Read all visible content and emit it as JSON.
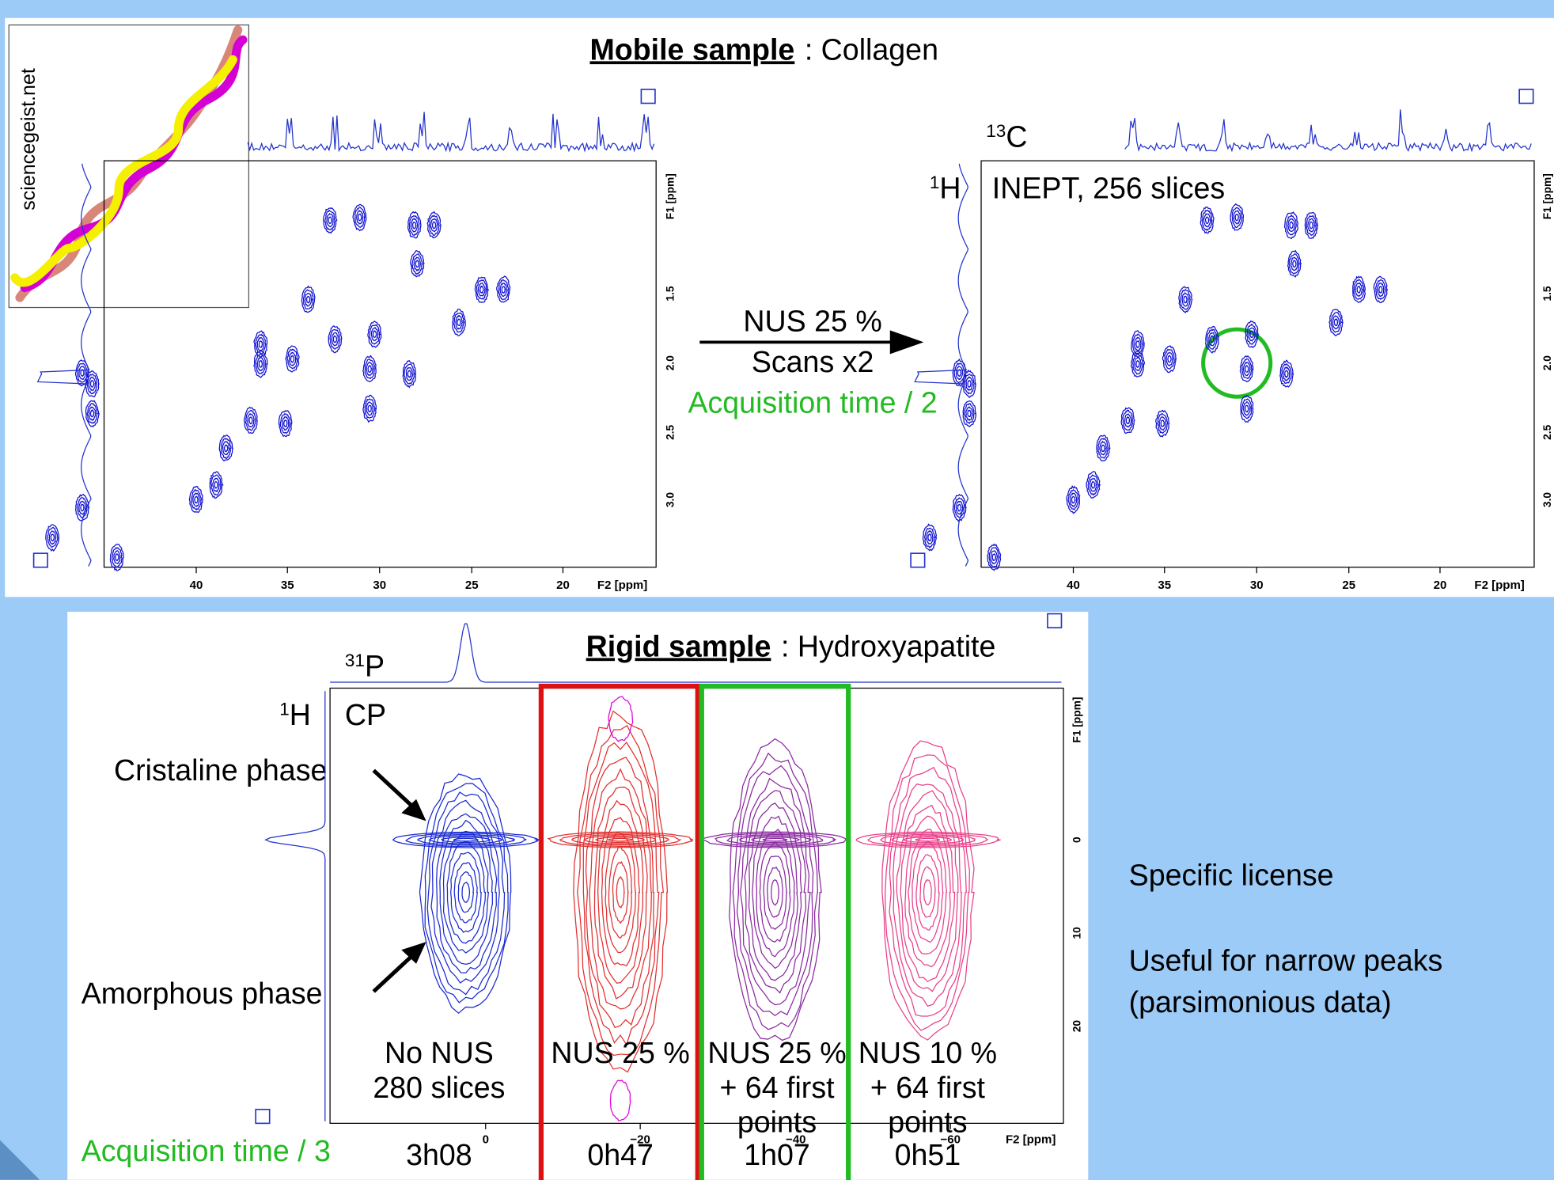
{
  "top": {
    "title_bold": "Mobile sample",
    "title_rest": ": Collagen",
    "inset_credit": "sciencegeist.net",
    "left_spectrum": {
      "x_ticks": [
        "40",
        "35",
        "30",
        "25",
        "20"
      ],
      "x_label": "F2 [ppm]",
      "y_ticks": [
        "1.5",
        "2.0",
        "2.5",
        "3.0"
      ],
      "y_label": "F1 [ppm]"
    },
    "arrow": {
      "line1": "NUS 25 %",
      "line2": "Scans x2",
      "line3": "Acquisition time / 2"
    },
    "right_spectrum": {
      "x_nucleus_mass": "13",
      "x_nucleus": "C",
      "y_nucleus_mass": "1",
      "y_nucleus": "H",
      "experiment": "INEPT, 256 slices",
      "x_ticks": [
        "40",
        "35",
        "30",
        "25",
        "20"
      ],
      "x_label": "F2 [ppm]",
      "y_ticks": [
        "1.5",
        "2.0",
        "2.5",
        "3.0"
      ],
      "y_label": "F1 [ppm]"
    }
  },
  "bottom": {
    "title_bold": "Rigid sample",
    "title_rest": ": Hydroxyapatite",
    "x_nucleus_mass": "31",
    "x_nucleus": "P",
    "y_nucleus_mass": "1",
    "y_nucleus": "H",
    "experiment": "CP",
    "cristaline": "Cristaline phase",
    "amorphous": "Amorphous phase",
    "acquisition": "Acquisition time / 3",
    "x_ticks": [
      "0",
      "−20",
      "−40",
      "−60"
    ],
    "x_label": "F2 [ppm]",
    "y_ticks": [
      "0",
      "10",
      "20"
    ],
    "y_label": "F1 [ppm]",
    "columns": [
      {
        "lines": [
          "No NUS",
          "280 slices"
        ],
        "time": "3h08"
      },
      {
        "lines": [
          "NUS 25 %"
        ],
        "time": "0h47"
      },
      {
        "lines": [
          "NUS 25 %",
          "+ 64 first",
          "points"
        ],
        "time": "1h07"
      },
      {
        "lines": [
          "NUS 10 %",
          "+ 64 first",
          "points"
        ],
        "time": "0h51"
      }
    ]
  },
  "notes": {
    "license": "Specific license",
    "useful1": "Useful for narrow peaks",
    "useful2": "(parsimonious data)"
  }
}
